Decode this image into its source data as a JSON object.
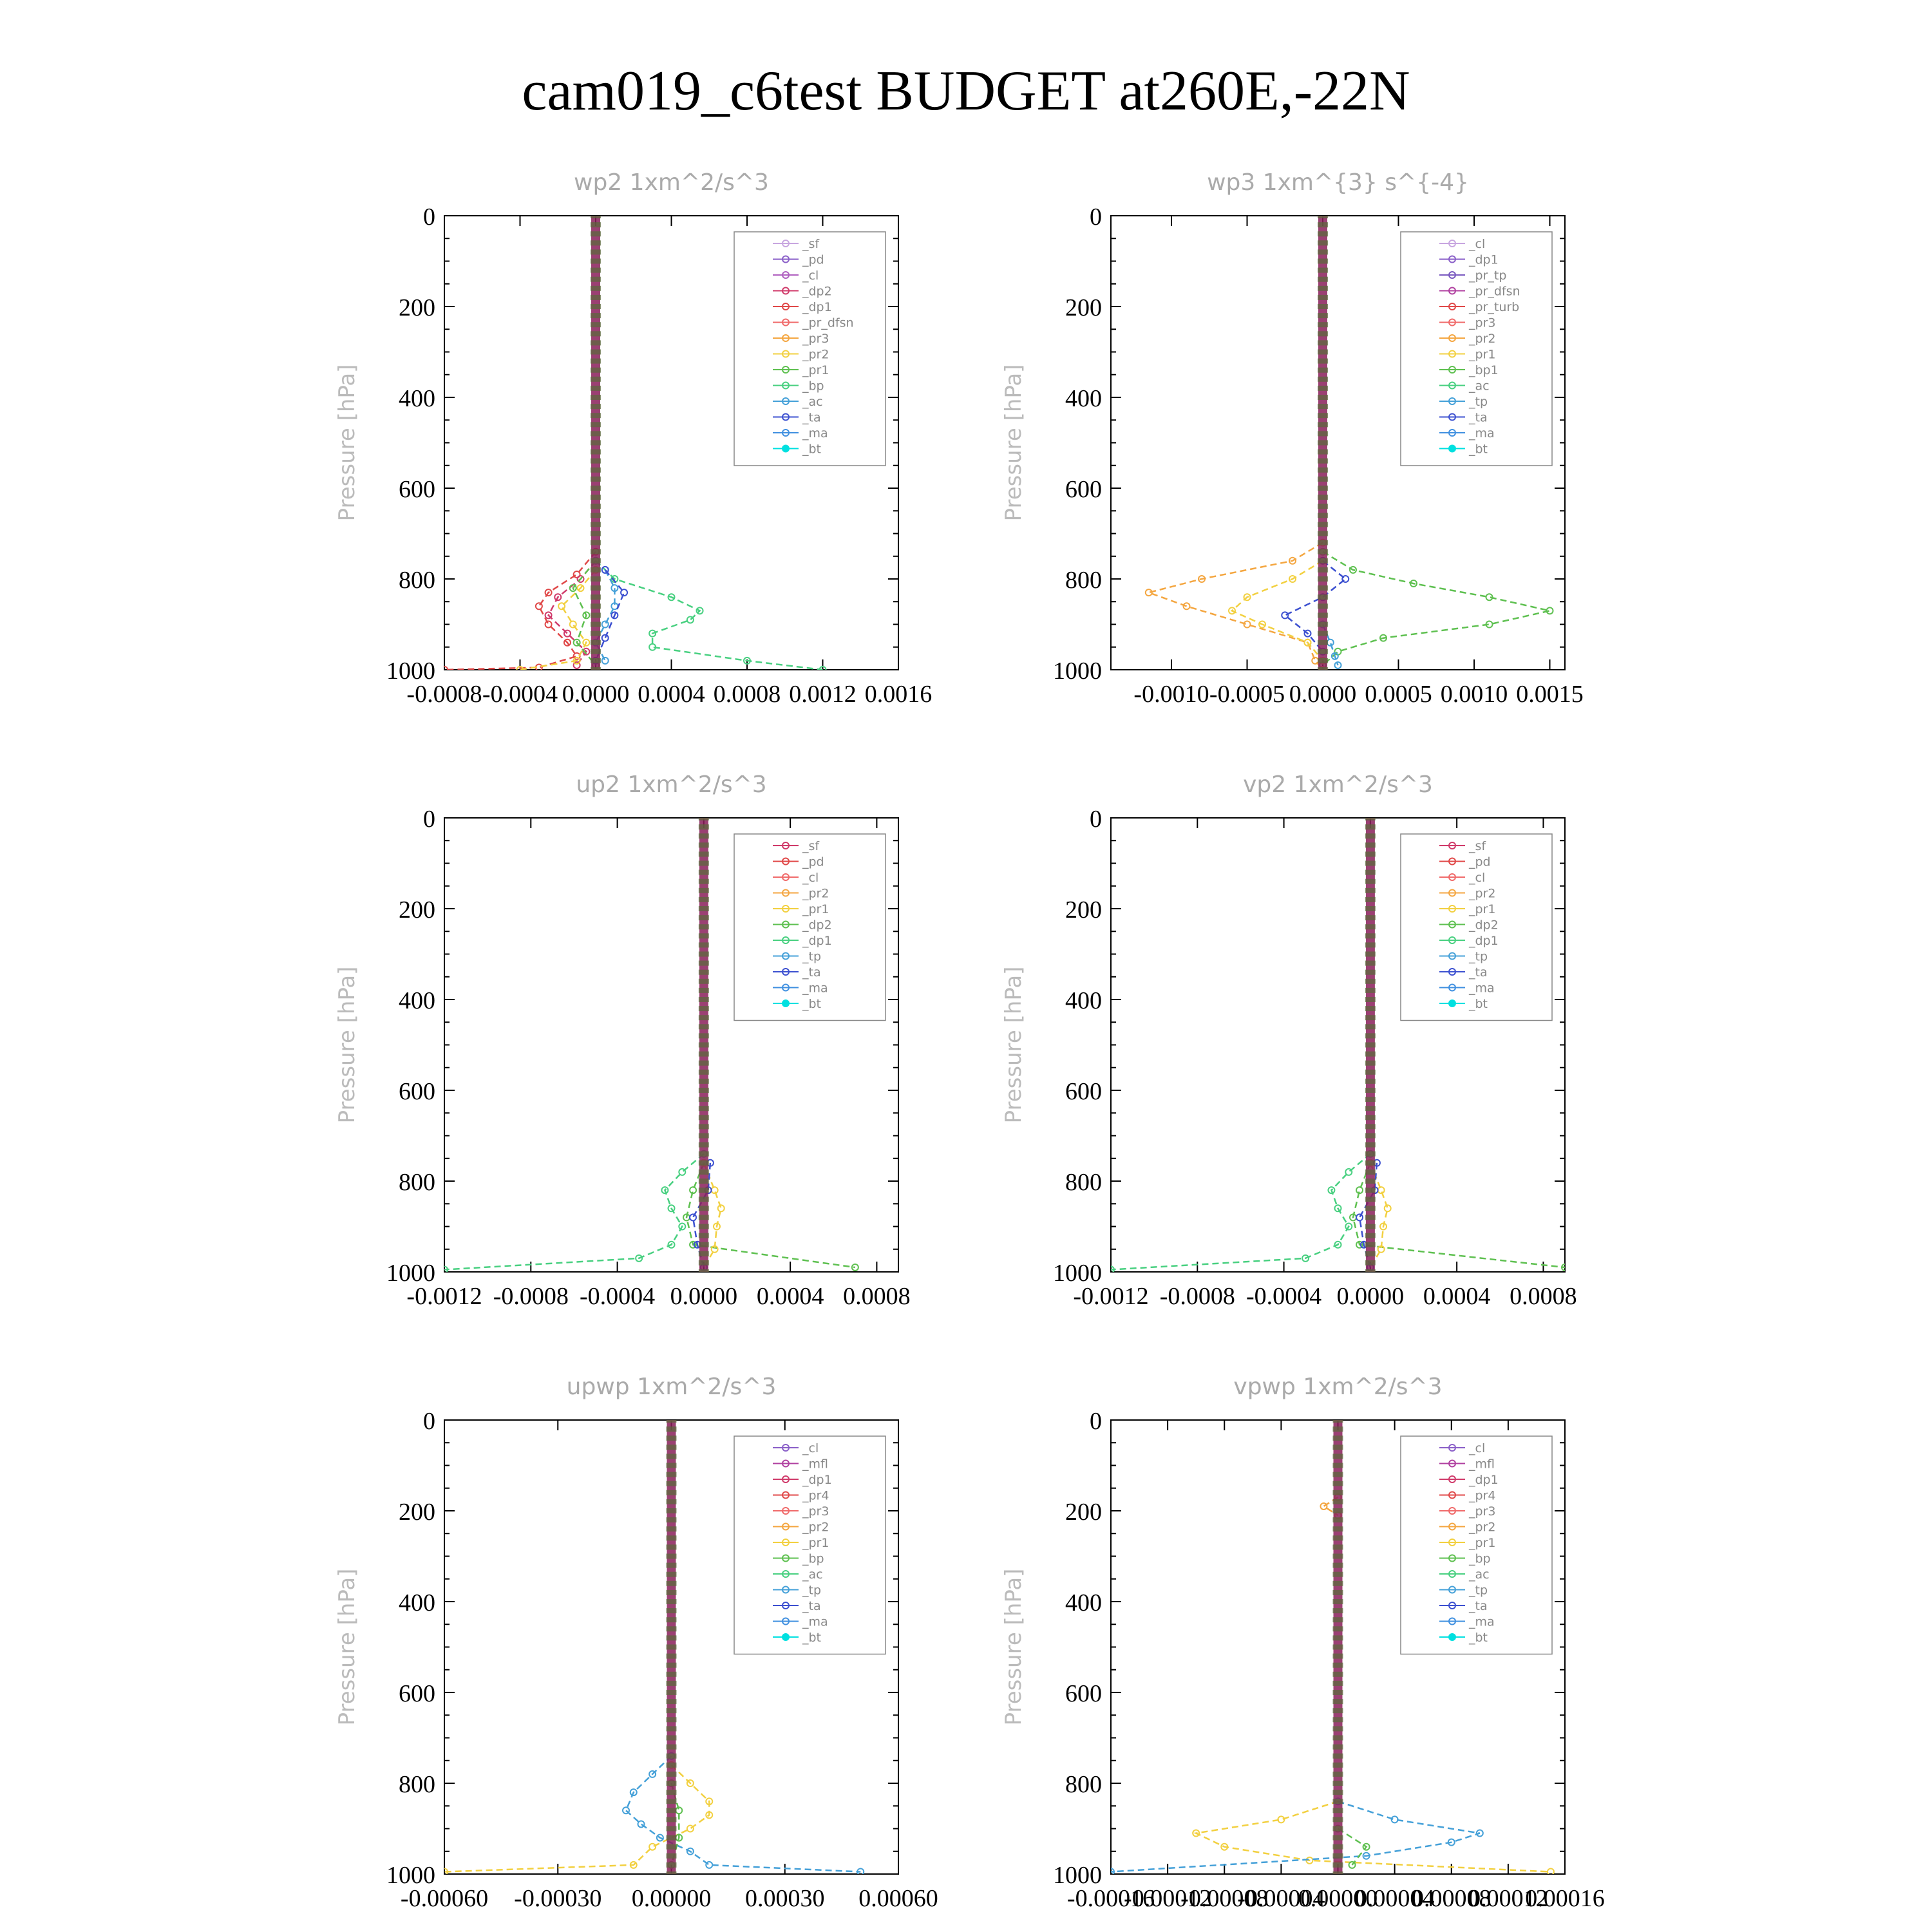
{
  "figure": {
    "title": "cam019_c6test  BUDGET at260E,-22N"
  },
  "colors": {
    "panel_title": "#aaaaaa",
    "ylabel": "#bbbbbb",
    "axis": "#000000"
  },
  "chart_data": [
    {
      "id": "wp2",
      "type": "line",
      "title": "wp2   1xm^2/s^3",
      "ylabel": "Pressure [hPa]",
      "ylim": [
        1000,
        0
      ],
      "yticks": [
        0,
        200,
        400,
        600,
        800,
        1000
      ],
      "xlim": [
        -0.0008,
        0.0016
      ],
      "xtick_labels": [
        "-0.0008",
        "-0.0004",
        "0.0000",
        "0.0004",
        "0.0008",
        "0.0012",
        "0.0016"
      ],
      "xtick_values": [
        -0.0008,
        -0.0004,
        0.0,
        0.0004,
        0.0008,
        0.0012,
        0.0016
      ],
      "legend": [
        "_sf",
        "_pd",
        "_cl",
        "_dp2",
        "_dp1",
        "_pr_dfsn",
        "_pr3",
        "_pr2",
        "_pr1",
        "_bp",
        "_ac",
        "_ta",
        "_ma",
        "_bt"
      ],
      "legend_colors": [
        "#c8a6e0",
        "#8a5fc8",
        "#b060c0",
        "#d03a6a",
        "#e04848",
        "#f06a6a",
        "#f4a640",
        "#f2d040",
        "#5ec050",
        "#48d080",
        "#44a0d8",
        "#3c50d0",
        "#4090e0",
        "#00e0e0"
      ],
      "legend_position": "top-right",
      "series": [
        {
          "name": "_dp1",
          "pressure": [
            740,
            790,
            830,
            860,
            900,
            940,
            970,
            995,
            1000
          ],
          "values": [
            0.0,
            -0.0001,
            -0.00025,
            -0.0003,
            -0.00025,
            -0.00015,
            -0.0001,
            -0.0003,
            -0.0008
          ]
        },
        {
          "name": "_dp2",
          "pressure": [
            760,
            800,
            840,
            880,
            920,
            960,
            990
          ],
          "values": [
            0.0,
            -8e-05,
            -0.0002,
            -0.00025,
            -0.00015,
            -5e-05,
            -0.0001
          ]
        },
        {
          "name": "_pr2",
          "pressure": [
            780,
            820,
            860,
            900,
            940,
            980,
            1000
          ],
          "values": [
            0.0,
            -8e-05,
            -0.00018,
            -0.00012,
            -5e-05,
            -0.0001,
            -0.0004
          ]
        },
        {
          "name": "_pr1",
          "pressure": [
            760,
            820,
            880,
            940,
            990
          ],
          "values": [
            0.0,
            -0.00012,
            -5e-05,
            -0.0001,
            0.0
          ]
        },
        {
          "name": "_bp",
          "pressure": [
            760,
            800,
            840,
            870,
            890,
            920,
            950,
            980,
            1000
          ],
          "values": [
            0.0,
            0.0001,
            0.0004,
            0.00055,
            0.0005,
            0.0003,
            0.0003,
            0.0008,
            0.0012
          ]
        },
        {
          "name": "_ac",
          "pressure": [
            780,
            820,
            860,
            900,
            940,
            980
          ],
          "values": [
            5e-05,
            0.0001,
            0.0001,
            5e-05,
            0.0,
            5e-05
          ]
        },
        {
          "name": "_ta",
          "pressure": [
            780,
            830,
            880,
            930,
            980
          ],
          "values": [
            5e-05,
            0.00015,
            0.0001,
            5e-05,
            0.0
          ]
        },
        {
          "name": "_bt",
          "pressure": [
            0,
            1000
          ],
          "values": [
            0.0,
            0.0
          ]
        }
      ]
    },
    {
      "id": "wp3",
      "type": "line",
      "title": "wp3   1xm^{3} s^{-4}",
      "ylabel": "Pressure [hPa]",
      "ylim": [
        1000,
        0
      ],
      "yticks": [
        0,
        200,
        400,
        600,
        800,
        1000
      ],
      "xlim": [
        -0.0014,
        0.0016
      ],
      "xtick_labels": [
        "-0.0010",
        "-0.0005",
        "0.0000",
        "0.0005",
        "0.0010",
        "0.0015"
      ],
      "xtick_values": [
        -0.001,
        -0.0005,
        0.0,
        0.0005,
        0.001,
        0.0015
      ],
      "legend": [
        "_cl",
        "_dp1",
        "_pr_tp",
        "_pr_dfsn",
        "_pr_turb",
        "_pr3",
        "_pr2",
        "_pr1",
        "_bp1",
        "_ac",
        "_tp",
        "_ta",
        "_ma",
        "_bt"
      ],
      "legend_colors": [
        "#c8a6e0",
        "#8a5fc8",
        "#7a5ac0",
        "#b040a0",
        "#e04848",
        "#f06a6a",
        "#f4a640",
        "#f2d040",
        "#5ec050",
        "#48d080",
        "#44a0d8",
        "#3c50d0",
        "#4090e0",
        "#00e0e0"
      ],
      "legend_position": "top-right",
      "series": [
        {
          "name": "_pr2",
          "pressure": [
            720,
            760,
            800,
            830,
            860,
            900,
            940,
            980,
            1000
          ],
          "values": [
            0.0,
            -0.0002,
            -0.0008,
            -0.00115,
            -0.0009,
            -0.0005,
            -0.0001,
            -5e-05,
            0.0
          ]
        },
        {
          "name": "_pr1",
          "pressure": [
            760,
            800,
            840,
            870,
            900,
            940,
            980
          ],
          "values": [
            0.0,
            -0.0002,
            -0.0005,
            -0.0006,
            -0.0004,
            -0.0001,
            0.0
          ]
        },
        {
          "name": "_bp1",
          "pressure": [
            740,
            780,
            810,
            840,
            870,
            900,
            930,
            960,
            990
          ],
          "values": [
            0.0,
            0.0002,
            0.0006,
            0.0011,
            0.0015,
            0.0011,
            0.0004,
            0.0001,
            0.0
          ]
        },
        {
          "name": "_ta",
          "pressure": [
            760,
            800,
            840,
            880,
            920,
            960
          ],
          "values": [
            0.0,
            0.00015,
            0.0,
            -0.00025,
            -0.0001,
            0.0
          ]
        },
        {
          "name": "_tp",
          "pressure": [
            900,
            940,
            970,
            990
          ],
          "values": [
            0.0,
            5e-05,
            8e-05,
            0.0001
          ]
        },
        {
          "name": "_bt",
          "pressure": [
            0,
            1000
          ],
          "values": [
            0.0,
            0.0
          ]
        }
      ]
    },
    {
      "id": "up2",
      "type": "line",
      "title": "up2   1xm^2/s^3",
      "ylabel": "Pressure [hPa]",
      "ylim": [
        1000,
        0
      ],
      "yticks": [
        0,
        200,
        400,
        600,
        800,
        1000
      ],
      "xlim": [
        -0.0012,
        0.0009
      ],
      "xtick_labels": [
        "-0.0012",
        "-0.0008",
        "-0.0004",
        "0.0000",
        "0.0004",
        "0.0008"
      ],
      "xtick_values": [
        -0.0012,
        -0.0008,
        -0.0004,
        0.0,
        0.0004,
        0.0008
      ],
      "legend": [
        "_sf",
        "_pd",
        "_cl",
        "_pr2",
        "_pr1",
        "_dp2",
        "_dp1",
        "_tp",
        "_ta",
        "_ma",
        "_bt"
      ],
      "legend_colors": [
        "#d03a6a",
        "#e04848",
        "#f06a6a",
        "#f4a640",
        "#f2d040",
        "#5ec050",
        "#48d080",
        "#44a0d8",
        "#3c50d0",
        "#4090e0",
        "#00e0e0"
      ],
      "legend_position": "top-right",
      "series": [
        {
          "name": "_dp1",
          "pressure": [
            740,
            780,
            820,
            860,
            900,
            940,
            970,
            995
          ],
          "values": [
            0.0,
            -0.0001,
            -0.00018,
            -0.00015,
            -0.0001,
            -0.00015,
            -0.0003,
            -0.0012
          ]
        },
        {
          "name": "_dp2",
          "pressure": [
            760,
            820,
            880,
            940,
            990
          ],
          "values": [
            0.0,
            -5e-05,
            -8e-05,
            -5e-05,
            0.0007
          ]
        },
        {
          "name": "_pr1",
          "pressure": [
            760,
            820,
            860,
            900,
            950,
            990
          ],
          "values": [
            0.0,
            5e-05,
            8e-05,
            6e-05,
            5e-05,
            0.0
          ]
        },
        {
          "name": "_ta",
          "pressure": [
            760,
            820,
            880,
            940,
            990
          ],
          "values": [
            3e-05,
            2e-05,
            -5e-05,
            -3e-05,
            0.0
          ]
        },
        {
          "name": "_bt",
          "pressure": [
            0,
            1000
          ],
          "values": [
            0.0,
            0.0
          ]
        }
      ]
    },
    {
      "id": "vp2",
      "type": "line",
      "title": "vp2   1xm^2/s^3",
      "ylabel": "Pressure [hPa]",
      "ylim": [
        1000,
        0
      ],
      "yticks": [
        0,
        200,
        400,
        600,
        800,
        1000
      ],
      "xlim": [
        -0.0012,
        0.0009
      ],
      "xtick_labels": [
        "-0.0012",
        "-0.0008",
        "-0.0004",
        "0.0000",
        "0.0004",
        "0.0008"
      ],
      "xtick_values": [
        -0.0012,
        -0.0008,
        -0.0004,
        0.0,
        0.0004,
        0.0008
      ],
      "legend": [
        "_sf",
        "_pd",
        "_cl",
        "_pr2",
        "_pr1",
        "_dp2",
        "_dp1",
        "_tp",
        "_ta",
        "_ma",
        "_bt"
      ],
      "legend_colors": [
        "#d03a6a",
        "#e04848",
        "#f06a6a",
        "#f4a640",
        "#f2d040",
        "#5ec050",
        "#48d080",
        "#44a0d8",
        "#3c50d0",
        "#4090e0",
        "#00e0e0"
      ],
      "legend_position": "top-right",
      "series": [
        {
          "name": "_dp1",
          "pressure": [
            740,
            780,
            820,
            860,
            900,
            940,
            970,
            995
          ],
          "values": [
            0.0,
            -0.0001,
            -0.00018,
            -0.00015,
            -0.0001,
            -0.00015,
            -0.0003,
            -0.0012
          ]
        },
        {
          "name": "_dp2",
          "pressure": [
            760,
            820,
            880,
            940,
            990
          ],
          "values": [
            0.0,
            -5e-05,
            -8e-05,
            -5e-05,
            0.0009
          ]
        },
        {
          "name": "_pr1",
          "pressure": [
            760,
            820,
            860,
            900,
            950,
            990
          ],
          "values": [
            0.0,
            5e-05,
            8e-05,
            6e-05,
            5e-05,
            0.0
          ]
        },
        {
          "name": "_ta",
          "pressure": [
            760,
            820,
            880,
            940,
            990
          ],
          "values": [
            3e-05,
            2e-05,
            -5e-05,
            -3e-05,
            0.0
          ]
        },
        {
          "name": "_bt",
          "pressure": [
            0,
            1000
          ],
          "values": [
            0.0,
            0.0
          ]
        }
      ]
    },
    {
      "id": "upwp",
      "type": "line",
      "title": "upwp   1xm^2/s^3",
      "ylabel": "Pressure [hPa]",
      "ylim": [
        1000,
        0
      ],
      "yticks": [
        0,
        200,
        400,
        600,
        800,
        1000
      ],
      "xlim": [
        -0.0006,
        0.0006
      ],
      "xtick_labels": [
        "-0.00060",
        "-0.00030",
        "0.00000",
        "0.00030",
        "0.00060"
      ],
      "xtick_values": [
        -0.0006,
        -0.0003,
        0.0,
        0.0003,
        0.0006
      ],
      "legend": [
        "_cl",
        "_mfl",
        "_dp1",
        "_pr4",
        "_pr3",
        "_pr2",
        "_pr1",
        "_bp",
        "_ac",
        "_tp",
        "_ta",
        "_ma",
        "_bt"
      ],
      "legend_colors": [
        "#8a5fc8",
        "#b040a0",
        "#d03a6a",
        "#e04848",
        "#f06a6a",
        "#f4a640",
        "#f2d040",
        "#5ec050",
        "#48d080",
        "#44a0d8",
        "#3c50d0",
        "#4090e0",
        "#00e0e0"
      ],
      "legend_position": "top-right",
      "series": [
        {
          "name": "_tp",
          "pressure": [
            740,
            780,
            820,
            860,
            890,
            920,
            950,
            980,
            995
          ],
          "values": [
            0.0,
            -5e-05,
            -0.0001,
            -0.00012,
            -8e-05,
            -3e-05,
            5e-05,
            0.0001,
            0.0005
          ]
        },
        {
          "name": "_pr1",
          "pressure": [
            760,
            800,
            840,
            870,
            900,
            940,
            980,
            995
          ],
          "values": [
            0.0,
            5e-05,
            0.0001,
            0.0001,
            5e-05,
            -5e-05,
            -0.0001,
            -0.0006
          ]
        },
        {
          "name": "_bp",
          "pressure": [
            800,
            860,
            920,
            980
          ],
          "values": [
            0.0,
            2e-05,
            2e-05,
            0.0
          ]
        },
        {
          "name": "_bt",
          "pressure": [
            0,
            1000
          ],
          "values": [
            0.0,
            0.0
          ]
        }
      ]
    },
    {
      "id": "vpwp",
      "type": "line",
      "title": "vpwp   1xm^2/s^3",
      "ylabel": "Pressure [hPa]",
      "ylim": [
        1000,
        0
      ],
      "yticks": [
        0,
        200,
        400,
        600,
        800,
        1000
      ],
      "xlim": [
        -0.00016,
        0.00016
      ],
      "xtick_labels": [
        "-0.00016",
        "-0.00012",
        "-0.00008",
        "-0.00004",
        "0.00000",
        "0.00004",
        "0.00008",
        "0.00012",
        "0.00016"
      ],
      "xtick_values": [
        -0.00016,
        -0.00012,
        -8e-05,
        -4e-05,
        0.0,
        4e-05,
        8e-05,
        0.00012,
        0.00016
      ],
      "legend": [
        "_cl",
        "_mfl",
        "_dp1",
        "_pr4",
        "_pr3",
        "_pr2",
        "_pr1",
        "_bp",
        "_ac",
        "_tp",
        "_ta",
        "_ma",
        "_bt"
      ],
      "legend_colors": [
        "#8a5fc8",
        "#b040a0",
        "#d03a6a",
        "#e04848",
        "#f06a6a",
        "#f4a640",
        "#f2d040",
        "#5ec050",
        "#48d080",
        "#44a0d8",
        "#3c50d0",
        "#4090e0",
        "#00e0e0"
      ],
      "legend_position": "top-right",
      "series": [
        {
          "name": "_pr1",
          "pressure": [
            840,
            880,
            910,
            940,
            970,
            995
          ],
          "values": [
            0.0,
            -4e-05,
            -0.0001,
            -8e-05,
            -2e-05,
            0.00015
          ]
        },
        {
          "name": "_tp",
          "pressure": [
            840,
            880,
            910,
            930,
            960,
            995
          ],
          "values": [
            0.0,
            4e-05,
            0.0001,
            8e-05,
            2e-05,
            -0.00016
          ]
        },
        {
          "name": "_bp",
          "pressure": [
            900,
            940,
            980
          ],
          "values": [
            0.0,
            2e-05,
            1e-05
          ]
        },
        {
          "name": "_pr2",
          "pressure": [
            170,
            190,
            210
          ],
          "values": [
            0.0,
            -1e-05,
            0.0
          ]
        },
        {
          "name": "_bt",
          "pressure": [
            0,
            1000
          ],
          "values": [
            0.0,
            0.0
          ]
        }
      ]
    }
  ]
}
